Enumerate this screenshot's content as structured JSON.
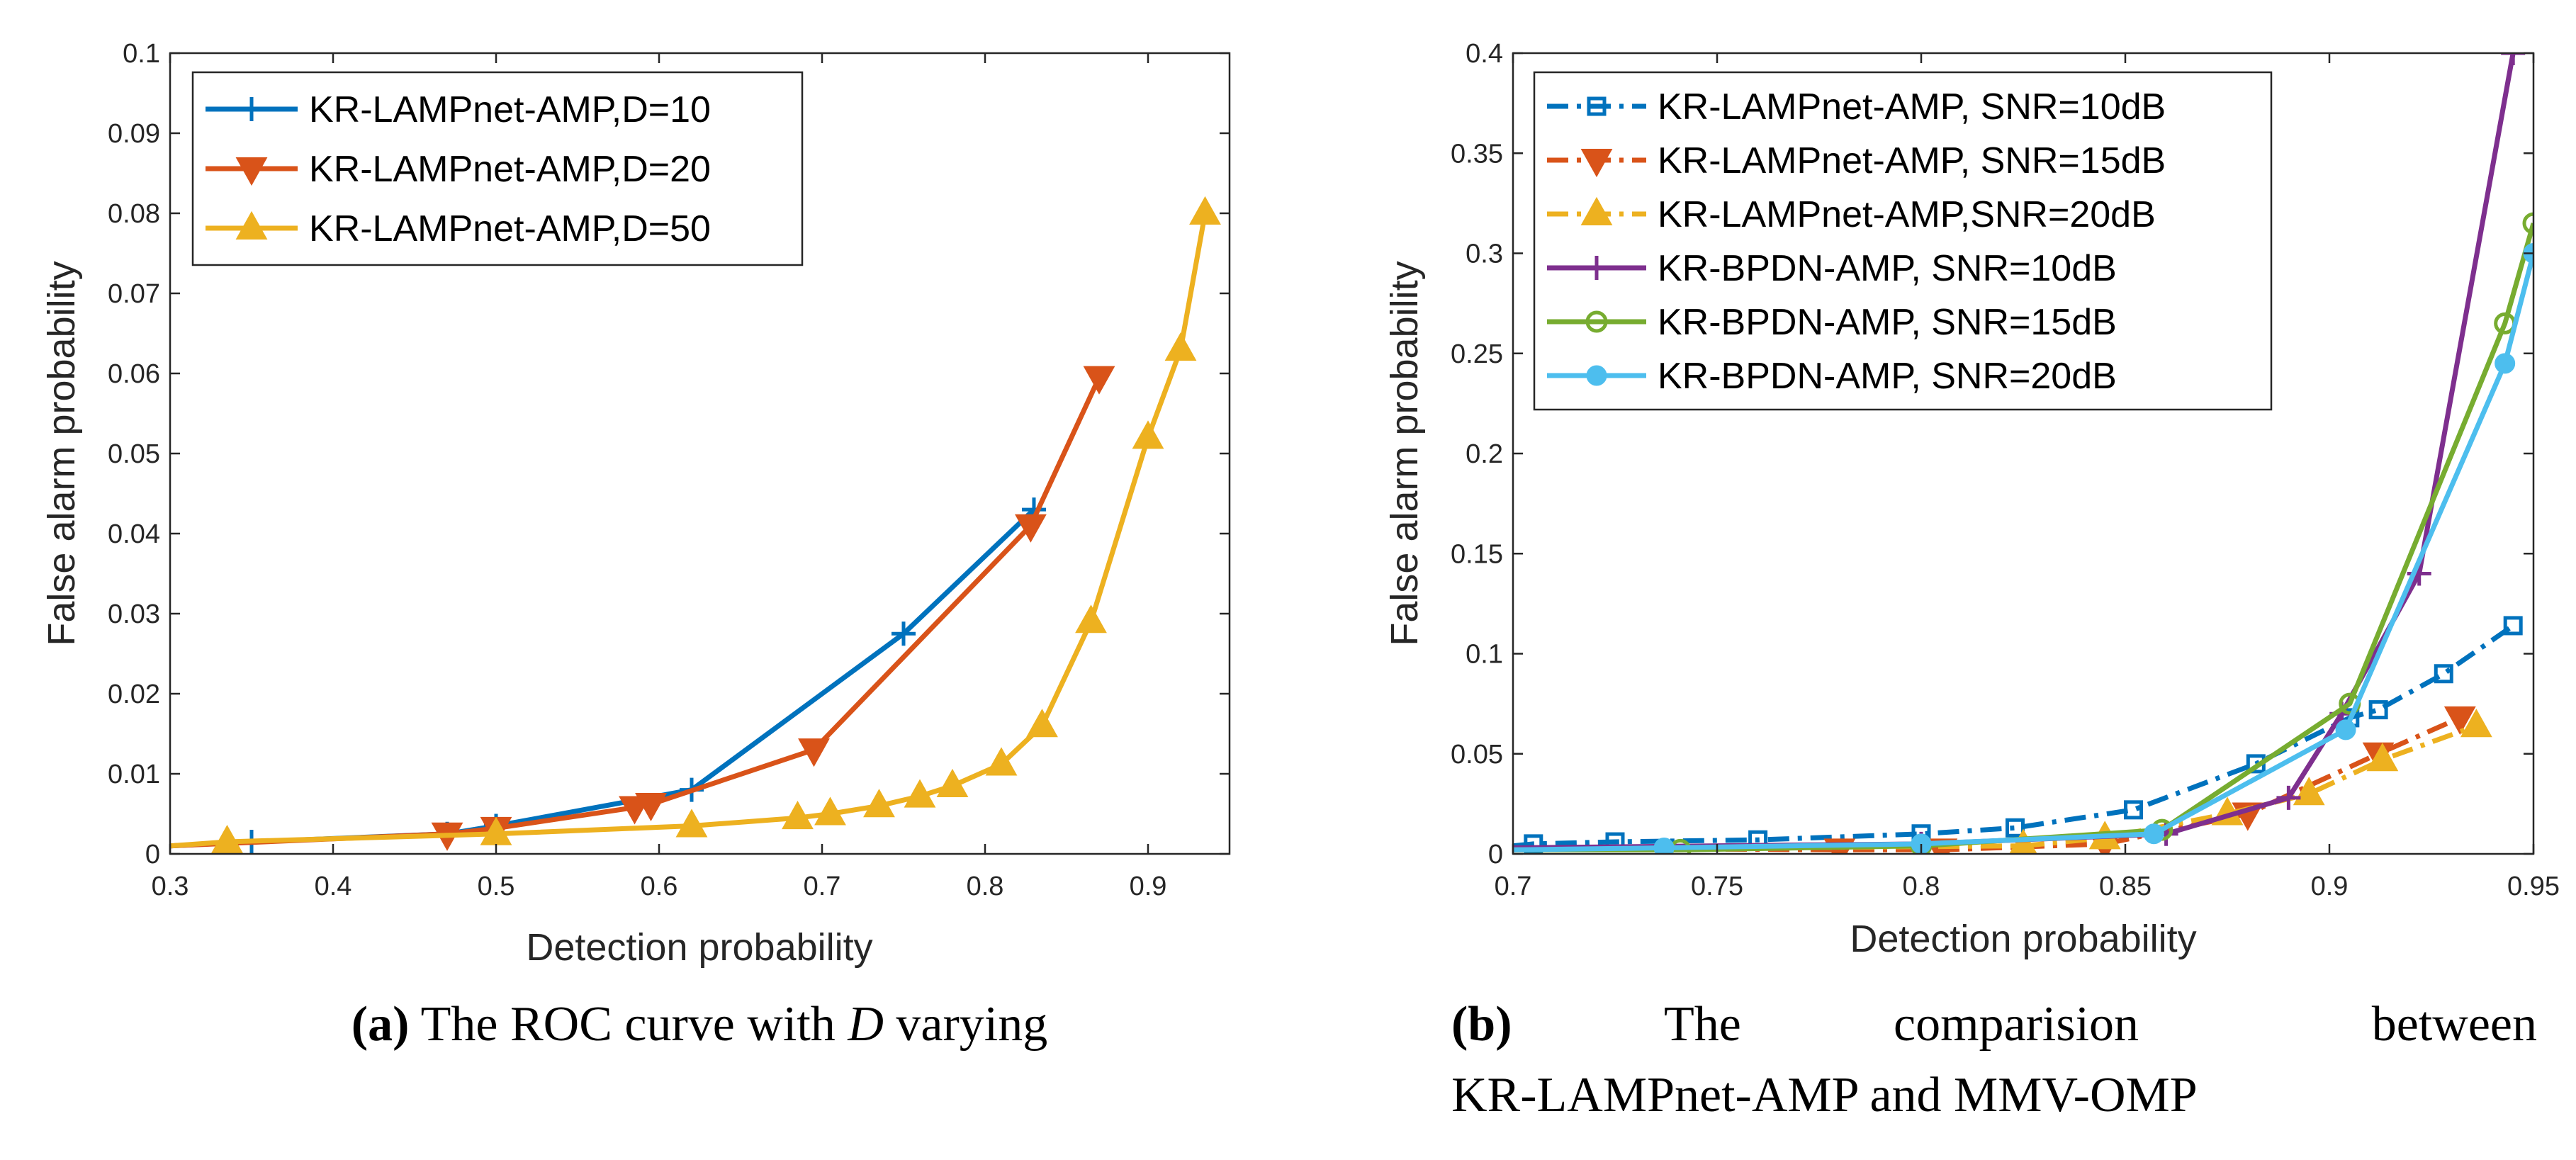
{
  "chart_data": [
    {
      "type": "line",
      "panel": "a",
      "xlabel": "Detection probability",
      "ylabel": "False alarm probability",
      "xlim": [
        0.3,
        0.95
      ],
      "ylim": [
        0,
        0.1
      ],
      "xticks": [
        0.3,
        0.4,
        0.5,
        0.6,
        0.7,
        0.8,
        0.9
      ],
      "yticks": [
        0,
        0.01,
        0.02,
        0.03,
        0.04,
        0.05,
        0.06,
        0.07,
        0.08,
        0.09,
        0.1
      ],
      "legend_position": "top-left",
      "series": [
        {
          "name": "KR-LAMPnet-AMP,D=10",
          "color": "#0072bd",
          "marker": "plus",
          "dash": "solid",
          "x": [
            0.3,
            0.35,
            0.47,
            0.5,
            0.62,
            0.75,
            0.83
          ],
          "y": [
            0.001,
            0.0015,
            0.0025,
            0.0035,
            0.008,
            0.0275,
            0.043
          ]
        },
        {
          "name": "KR-LAMPnet-AMP,D=20",
          "color": "#d95319",
          "marker": "triangle-down",
          "dash": "solid",
          "x": [
            0.3,
            0.47,
            0.5,
            0.585,
            0.595,
            0.695,
            0.828,
            0.87
          ],
          "y": [
            0.001,
            0.0025,
            0.0032,
            0.0058,
            0.0062,
            0.013,
            0.041,
            0.0595
          ]
        },
        {
          "name": "KR-LAMPnet-AMP,D=50",
          "color": "#edb120",
          "marker": "triangle-up",
          "dash": "solid",
          "x": [
            0.3,
            0.335,
            0.5,
            0.62,
            0.685,
            0.705,
            0.735,
            0.76,
            0.78,
            0.81,
            0.835,
            0.865,
            0.9,
            0.92,
            0.935
          ],
          "y": [
            0.001,
            0.0015,
            0.0025,
            0.0035,
            0.0045,
            0.005,
            0.006,
            0.0072,
            0.0085,
            0.0112,
            0.016,
            0.029,
            0.052,
            0.063,
            0.08
          ]
        }
      ]
    },
    {
      "type": "line",
      "panel": "b",
      "xlabel": "Detection probability",
      "ylabel": "False alarm probability",
      "xlim": [
        0.7,
        0.95
      ],
      "ylim": [
        0,
        0.4
      ],
      "xticks": [
        0.7,
        0.75,
        0.8,
        0.85,
        0.9,
        0.95
      ],
      "yticks": [
        0,
        0.05,
        0.1,
        0.15,
        0.2,
        0.25,
        0.3,
        0.35,
        0.4
      ],
      "legend_position": "top-left",
      "series": [
        {
          "name": "KR-LAMPnet-AMP, SNR=10dB",
          "color": "#0072bd",
          "marker": "square",
          "dash": "dashdot",
          "x": [
            0.7,
            0.705,
            0.725,
            0.76,
            0.8,
            0.823,
            0.852,
            0.882,
            0.905,
            0.912,
            0.928,
            0.945
          ],
          "y": [
            0.004,
            0.005,
            0.006,
            0.007,
            0.01,
            0.013,
            0.022,
            0.045,
            0.068,
            0.072,
            0.09,
            0.114
          ]
        },
        {
          "name": "KR-LAMPnet-AMP, SNR=15dB",
          "color": "#d95319",
          "marker": "triangle-down",
          "dash": "dashdot",
          "x": [
            0.7,
            0.78,
            0.805,
            0.845,
            0.88,
            0.912,
            0.932
          ],
          "y": [
            0.003,
            0.002,
            0.002,
            0.005,
            0.02,
            0.05,
            0.068
          ]
        },
        {
          "name": "KR-LAMPnet-AMP,SNR=20dB",
          "color": "#edb120",
          "marker": "triangle-up",
          "dash": "dashdot",
          "x": [
            0.7,
            0.825,
            0.845,
            0.875,
            0.895,
            0.913,
            0.936
          ],
          "y": [
            0.002,
            0.004,
            0.008,
            0.02,
            0.03,
            0.047,
            0.064
          ]
        },
        {
          "name": "KR-BPDN-AMP, SNR=10dB",
          "color": "#7e2f8e",
          "marker": "plus",
          "dash": "solid",
          "x": [
            0.7,
            0.8,
            0.86,
            0.89,
            0.903,
            0.922,
            0.945
          ],
          "y": [
            0.003,
            0.005,
            0.01,
            0.028,
            0.07,
            0.14,
            0.4
          ]
        },
        {
          "name": "KR-BPDN-AMP, SNR=15dB",
          "color": "#77ac30",
          "marker": "circle",
          "dash": "solid",
          "x": [
            0.7,
            0.741,
            0.8,
            0.859,
            0.905,
            0.943,
            0.95
          ],
          "y": [
            0.002,
            0.002,
            0.004,
            0.012,
            0.075,
            0.265,
            0.315
          ]
        },
        {
          "name": "KR-BPDN-AMP, SNR=20dB",
          "color": "#4dbeee",
          "marker": "dot",
          "dash": "solid",
          "x": [
            0.7,
            0.737,
            0.8,
            0.857,
            0.904,
            0.943,
            0.95
          ],
          "y": [
            0.002,
            0.003,
            0.005,
            0.01,
            0.062,
            0.245,
            0.3
          ]
        }
      ]
    }
  ],
  "captions": {
    "a": {
      "label": "(a)",
      "text_before": " The ROC curve with ",
      "italic": "D",
      "text_after": " varying"
    },
    "b": {
      "label": "(b)",
      "line1_words": [
        "The",
        "comparision",
        "between"
      ],
      "line2": "KR-LAMPnet-AMP and MMV-OMP"
    }
  }
}
